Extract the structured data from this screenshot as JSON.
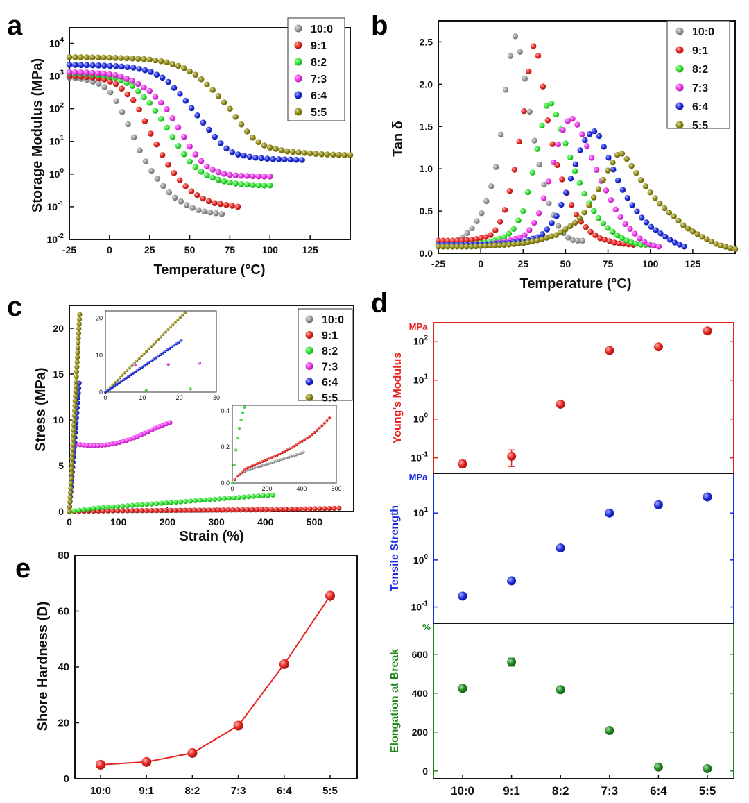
{
  "panel_labels": [
    "a",
    "b",
    "c",
    "d",
    "e"
  ],
  "legend": {
    "entries": [
      "10:0",
      "9:1",
      "8:2",
      "7:3",
      "6:4",
      "5:5"
    ],
    "colors": [
      "#9a9a9a",
      "#e8231f",
      "#2ee62e",
      "#ee33ee",
      "#1a2ae0",
      "#8f8a10"
    ]
  },
  "chart_data": [
    {
      "id": "a",
      "type": "scatter",
      "title": "",
      "xlabel": "Temperature (°C)",
      "ylabel": "Storage Modulus (MPa)",
      "yscale": "log",
      "xlim": [
        -25,
        150
      ],
      "ylim": [
        0.01,
        30000
      ],
      "xticks": [
        "-25",
        "0",
        "25",
        "50",
        "75",
        "100",
        "125"
      ],
      "yticks": [
        "10^4",
        "10^3",
        "10^2",
        "10^1",
        "10^0",
        "10^-1",
        "10^-2"
      ],
      "series": [
        {
          "name": "10:0",
          "x": [
            -25,
            -15,
            -5,
            0,
            5,
            10,
            15,
            20,
            25,
            30,
            35,
            40,
            45,
            50,
            55,
            60,
            65,
            70
          ],
          "y": [
            900,
            800,
            550,
            350,
            150,
            50,
            14,
            4,
            1.5,
            0.7,
            0.35,
            0.2,
            0.14,
            0.1,
            0.08,
            0.07,
            0.065,
            0.06
          ]
        },
        {
          "name": "9:1",
          "x": [
            -25,
            -15,
            -5,
            5,
            15,
            20,
            25,
            30,
            35,
            40,
            45,
            50,
            55,
            60,
            65,
            70,
            75,
            80
          ],
          "y": [
            1000,
            950,
            850,
            550,
            180,
            70,
            20,
            7,
            2.5,
            1.1,
            0.55,
            0.32,
            0.22,
            0.16,
            0.13,
            0.12,
            0.11,
            0.1
          ]
        },
        {
          "name": "8:2",
          "x": [
            -25,
            -15,
            -5,
            5,
            15,
            25,
            30,
            35,
            40,
            45,
            50,
            55,
            60,
            65,
            70,
            75,
            80,
            85,
            90,
            95,
            100
          ],
          "y": [
            1200,
            1150,
            1050,
            850,
            480,
            150,
            70,
            30,
            12,
            5,
            2.4,
            1.4,
            0.95,
            0.75,
            0.62,
            0.55,
            0.5,
            0.48,
            0.46,
            0.45,
            0.45
          ]
        },
        {
          "name": "7:3",
          "x": [
            -25,
            -15,
            -5,
            5,
            15,
            25,
            35,
            40,
            45,
            50,
            55,
            60,
            65,
            70,
            75,
            80,
            85,
            90,
            95,
            100
          ],
          "y": [
            1300,
            1280,
            1200,
            1050,
            700,
            350,
            110,
            45,
            18,
            7,
            3.2,
            1.8,
            1.3,
            1.05,
            0.95,
            0.9,
            0.88,
            0.86,
            0.85,
            0.85
          ]
        },
        {
          "name": "6:4",
          "x": [
            -25,
            -15,
            -5,
            5,
            15,
            25,
            35,
            45,
            55,
            60,
            65,
            70,
            75,
            80,
            90,
            100,
            110,
            120
          ],
          "y": [
            2200,
            2150,
            2100,
            2000,
            1800,
            1400,
            800,
            250,
            60,
            30,
            15,
            8,
            5,
            4,
            3.2,
            2.9,
            2.8,
            2.7
          ]
        },
        {
          "name": "5:5",
          "x": [
            -25,
            -15,
            -5,
            5,
            15,
            25,
            35,
            45,
            55,
            65,
            75,
            80,
            85,
            90,
            95,
            100,
            110,
            120,
            130,
            140,
            150
          ],
          "y": [
            3800,
            3750,
            3700,
            3600,
            3450,
            3200,
            2700,
            1900,
            1000,
            350,
            100,
            45,
            22,
            12,
            8,
            6.5,
            5,
            4.5,
            4.1,
            3.9,
            3.8
          ]
        }
      ]
    },
    {
      "id": "b",
      "type": "scatter",
      "title": "",
      "xlabel": "Temperature (°C)",
      "ylabel": "Tan δ",
      "xlim": [
        -25,
        150
      ],
      "ylim": [
        0,
        2.75
      ],
      "xticks": [
        "-25",
        "0",
        "25",
        "50",
        "75",
        "100",
        "125"
      ],
      "yticks": [
        "0.0",
        "0.5",
        "1.0",
        "1.5",
        "2.0",
        "2.5"
      ],
      "series": [
        {
          "name": "10:0",
          "x": [
            -25,
            -20,
            -15,
            -10,
            -5,
            0,
            5,
            10,
            13,
            15,
            18,
            20,
            22,
            25,
            28,
            30,
            35,
            40,
            45,
            50,
            55,
            60
          ],
          "y": [
            0.1,
            0.12,
            0.15,
            0.2,
            0.3,
            0.45,
            0.7,
            1.1,
            1.6,
            2.0,
            2.4,
            2.58,
            2.5,
            2.2,
            1.8,
            1.5,
            1.0,
            0.6,
            0.35,
            0.2,
            0.15,
            0.15
          ]
        },
        {
          "name": "9:1",
          "x": [
            -25,
            -15,
            -5,
            5,
            10,
            15,
            20,
            25,
            28,
            30,
            33,
            35,
            38,
            40,
            45,
            50,
            55,
            60,
            65,
            70,
            80,
            90
          ],
          "y": [
            0.15,
            0.15,
            0.16,
            0.2,
            0.3,
            0.55,
            1.0,
            1.6,
            2.1,
            2.45,
            2.45,
            2.2,
            1.8,
            1.5,
            1.05,
            0.75,
            0.5,
            0.35,
            0.25,
            0.18,
            0.12,
            0.1
          ]
        },
        {
          "name": "8:2",
          "x": [
            -25,
            -15,
            -5,
            5,
            15,
            20,
            25,
            30,
            35,
            38,
            40,
            43,
            45,
            50,
            55,
            60,
            65,
            70,
            75,
            80,
            85,
            90,
            95,
            100
          ],
          "y": [
            0.1,
            0.1,
            0.11,
            0.13,
            0.2,
            0.3,
            0.5,
            0.9,
            1.4,
            1.7,
            1.8,
            1.75,
            1.6,
            1.3,
            1.0,
            0.75,
            0.55,
            0.4,
            0.3,
            0.22,
            0.16,
            0.12,
            0.1,
            0.1
          ]
        },
        {
          "name": "7:3",
          "x": [
            -25,
            -15,
            -5,
            5,
            15,
            25,
            30,
            35,
            40,
            45,
            50,
            55,
            60,
            65,
            70,
            75,
            80,
            85,
            90,
            95,
            100,
            105
          ],
          "y": [
            0.1,
            0.1,
            0.1,
            0.11,
            0.14,
            0.2,
            0.3,
            0.5,
            0.85,
            1.25,
            1.55,
            1.6,
            1.4,
            1.15,
            0.9,
            0.7,
            0.5,
            0.35,
            0.25,
            0.15,
            0.1,
            0.08
          ]
        },
        {
          "name": "6:4",
          "x": [
            -25,
            -15,
            -5,
            5,
            15,
            25,
            35,
            40,
            45,
            50,
            55,
            60,
            65,
            68,
            70,
            75,
            80,
            85,
            90,
            95,
            100,
            105,
            110,
            115,
            120
          ],
          "y": [
            0.1,
            0.1,
            0.1,
            0.11,
            0.12,
            0.14,
            0.2,
            0.3,
            0.45,
            0.7,
            1.0,
            1.3,
            1.43,
            1.45,
            1.38,
            1.15,
            0.9,
            0.7,
            0.55,
            0.42,
            0.32,
            0.25,
            0.18,
            0.12,
            0.08
          ]
        },
        {
          "name": "5:5",
          "x": [
            -25,
            -15,
            -5,
            5,
            15,
            25,
            35,
            45,
            55,
            60,
            65,
            70,
            75,
            80,
            82,
            85,
            90,
            95,
            100,
            105,
            110,
            115,
            120,
            130,
            140,
            150
          ],
          "y": [
            0.08,
            0.08,
            0.08,
            0.09,
            0.1,
            0.12,
            0.16,
            0.22,
            0.35,
            0.45,
            0.6,
            0.78,
            0.98,
            1.15,
            1.2,
            1.15,
            1.0,
            0.85,
            0.72,
            0.6,
            0.5,
            0.42,
            0.32,
            0.2,
            0.1,
            0.05
          ]
        }
      ]
    },
    {
      "id": "c",
      "type": "scatter",
      "title": "",
      "xlabel": "Strain (%)",
      "ylabel": "Stress (MPa)",
      "xlim": [
        0,
        580
      ],
      "ylim": [
        0,
        22.5
      ],
      "xticks": [
        "0",
        "100",
        "200",
        "300",
        "400",
        "500"
      ],
      "yticks": [
        "0",
        "5",
        "10",
        "15",
        "20"
      ],
      "series": [
        {
          "name": "10:0",
          "x": [
            0,
            50,
            100,
            200,
            300,
            410
          ],
          "y": [
            0,
            0.05,
            0.08,
            0.11,
            0.14,
            0.17
          ]
        },
        {
          "name": "9:1",
          "x": [
            0,
            100,
            200,
            300,
            400,
            500,
            550
          ],
          "y": [
            0,
            0.09,
            0.12,
            0.16,
            0.22,
            0.3,
            0.36
          ]
        },
        {
          "name": "8:2",
          "x": [
            0,
            50,
            100,
            150,
            200,
            250,
            300,
            350,
            400,
            415
          ],
          "y": [
            0,
            0.35,
            0.55,
            0.75,
            0.95,
            1.15,
            1.35,
            1.55,
            1.75,
            1.8
          ]
        },
        {
          "name": "7:3",
          "x": [
            0,
            3,
            6,
            10,
            20,
            40,
            60,
            80,
            100,
            120,
            140,
            160,
            180,
            200,
            205
          ],
          "y": [
            0,
            4,
            7,
            7.4,
            7.3,
            7.2,
            7.2,
            7.3,
            7.5,
            7.8,
            8.2,
            8.7,
            9.2,
            9.6,
            9.7
          ]
        },
        {
          "name": "6:4",
          "x": [
            0,
            5,
            10,
            15,
            20
          ],
          "y": [
            0,
            3.5,
            7,
            10.5,
            14
          ]
        },
        {
          "name": "5:5",
          "x": [
            0,
            3,
            6,
            9,
            12,
            15,
            18,
            21
          ],
          "y": [
            0,
            3,
            6.1,
            9.2,
            12.3,
            15.4,
            18.5,
            21.5
          ]
        }
      ],
      "insets": [
        {
          "xlim": [
            0,
            30
          ],
          "ylim": [
            0,
            22
          ],
          "xticks": [
            "0",
            "10",
            "20",
            "30"
          ],
          "yticks": [
            "0",
            "10",
            "20"
          ],
          "series": [
            {
              "name": "5:5",
              "x": [
                0,
                21.5
              ],
              "y": [
                0,
                21.5
              ]
            },
            {
              "name": "6:4",
              "x": [
                0,
                20.5
              ],
              "y": [
                0,
                14
              ]
            },
            {
              "name": "7:3",
              "x": [
                8,
                17,
                25.5
              ],
              "y": [
                7.3,
                7.5,
                7.8
              ]
            },
            {
              "name": "8:2",
              "x": [
                11,
                23
              ],
              "y": [
                0.5,
                0.9
              ]
            }
          ]
        },
        {
          "xlim": [
            0,
            600
          ],
          "ylim": [
            0,
            0.43
          ],
          "xticks": [
            "0",
            "200",
            "400",
            "600"
          ],
          "yticks": [
            "0.0",
            "0.2",
            "0.4"
          ],
          "series": [
            {
              "name": "10:0",
              "x": [
                0,
                30,
                80,
                150,
                250,
                350,
                410
              ],
              "y": [
                0,
                0.04,
                0.07,
                0.09,
                0.12,
                0.15,
                0.17
              ]
            },
            {
              "name": "9:1",
              "x": [
                0,
                30,
                80,
                150,
                250,
                350,
                450,
                520,
                560
              ],
              "y": [
                0,
                0.04,
                0.08,
                0.11,
                0.15,
                0.2,
                0.26,
                0.32,
                0.36
              ]
            },
            {
              "name": "8:2",
              "x": [
                0,
                15,
                30,
                45,
                60,
                70
              ],
              "y": [
                0,
                0.15,
                0.25,
                0.33,
                0.39,
                0.42
              ]
            }
          ]
        }
      ]
    },
    {
      "id": "d",
      "type": "scatter",
      "categories": [
        "10:0",
        "9:1",
        "8:2",
        "7:3",
        "6:4",
        "5:5"
      ],
      "subplots": [
        {
          "ylabel": "Young's Modulus",
          "unit": "MPa",
          "color": "#e8231f",
          "yscale": "log",
          "ylim": [
            0.04,
            300
          ],
          "yticks": [
            "10^2",
            "10^1",
            "10^0",
            "10^-1"
          ],
          "values": [
            0.07,
            0.11,
            2.4,
            58,
            72,
            185
          ],
          "errors": [
            0.015,
            0.05,
            0.3,
            8,
            10,
            20
          ]
        },
        {
          "ylabel": "Tensile Strength",
          "unit": "MPa",
          "color": "#1a2ae0",
          "yscale": "log",
          "ylim": [
            0.045,
            70
          ],
          "yticks": [
            "10^1",
            "10^0",
            "10^-1"
          ],
          "values": [
            0.17,
            0.36,
            1.8,
            10,
            15,
            22
          ],
          "errors": [
            0.02,
            0.05,
            0.2,
            1,
            1.5,
            2
          ]
        },
        {
          "ylabel": "Elongation at Break",
          "unit": "%",
          "color": "#1e8a1e",
          "yscale": "linear",
          "ylim": [
            -40,
            760
          ],
          "yticks": [
            "600",
            "400",
            "200",
            "0"
          ],
          "values": [
            425,
            560,
            418,
            208,
            20,
            12
          ],
          "errors": [
            15,
            20,
            15,
            10,
            5,
            5
          ]
        }
      ]
    },
    {
      "id": "e",
      "type": "line",
      "xlabel": "",
      "ylabel": "Shore Hardness (D)",
      "categories": [
        "10:0",
        "9:1",
        "8:2",
        "7:3",
        "6:4",
        "5:5"
      ],
      "values": [
        5,
        6,
        9.2,
        19,
        41,
        65.5
      ],
      "errors": [
        1,
        1,
        1,
        1,
        1.5,
        2
      ],
      "ylim": [
        0,
        80
      ],
      "yticks": [
        "0",
        "20",
        "40",
        "60",
        "80"
      ],
      "color": "#e8231f"
    }
  ]
}
